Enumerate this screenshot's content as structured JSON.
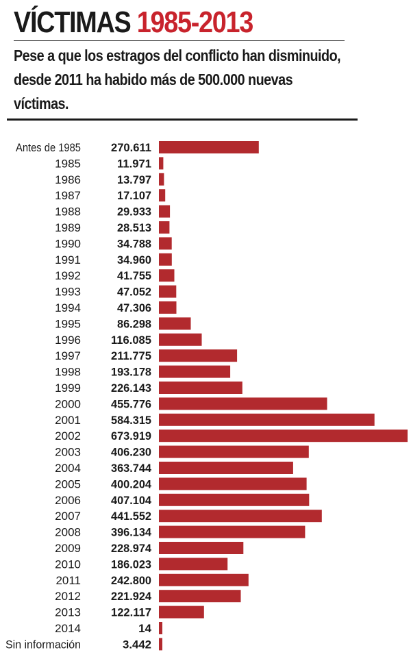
{
  "header": {
    "title_main": "VÍCTIMAS",
    "title_years": "1985-2013",
    "subtitle": "Pese a que los estragos del conflicto han disminuido, desde 2011 ha habido más de 500.000 nuevas víctimas."
  },
  "colors": {
    "bar": "#b22a2e",
    "title_accent": "#c8232c",
    "text": "#1a1a1a"
  },
  "chart_data": {
    "type": "bar",
    "orientation": "horizontal",
    "title": "VÍCTIMAS 1985-2013",
    "subtitle": "Pese a que los estragos del conflicto han disminuido, desde 2011 ha habido más de 500.000 nuevas víctimas.",
    "categories": [
      "Antes de 1985",
      "1985",
      "1986",
      "1987",
      "1988",
      "1989",
      "1990",
      "1991",
      "1992",
      "1993",
      "1994",
      "1995",
      "1996",
      "1997",
      "1998",
      "1999",
      "2000",
      "2001",
      "2002",
      "2003",
      "2004",
      "2005",
      "2006",
      "2007",
      "2008",
      "2009",
      "2010",
      "2011",
      "2012",
      "2013",
      "2014",
      "Sin información"
    ],
    "values": [
      270611,
      11971,
      13797,
      17107,
      29933,
      28513,
      34788,
      34960,
      41755,
      47052,
      47306,
      86298,
      116085,
      211775,
      193178,
      226143,
      455776,
      584315,
      673919,
      406230,
      363744,
      400204,
      407104,
      441552,
      396134,
      228974,
      186023,
      242800,
      221924,
      122117,
      14,
      3442
    ],
    "value_labels": [
      "270.611",
      "11.971",
      "13.797",
      "17.107",
      "29.933",
      "28.513",
      "34.788",
      "34.960",
      "41.755",
      "47.052",
      "47.306",
      "86.298",
      "116.085",
      "211.775",
      "193.178",
      "226.143",
      "455.776",
      "584.315",
      "673.919",
      "406.230",
      "363.744",
      "400.204",
      "407.104",
      "441.552",
      "396.134",
      "228.974",
      "186.023",
      "242.800",
      "221.924",
      "122.117",
      "14",
      "3.442"
    ],
    "xlim": [
      0,
      673919
    ],
    "grid": false,
    "legend": "none"
  }
}
